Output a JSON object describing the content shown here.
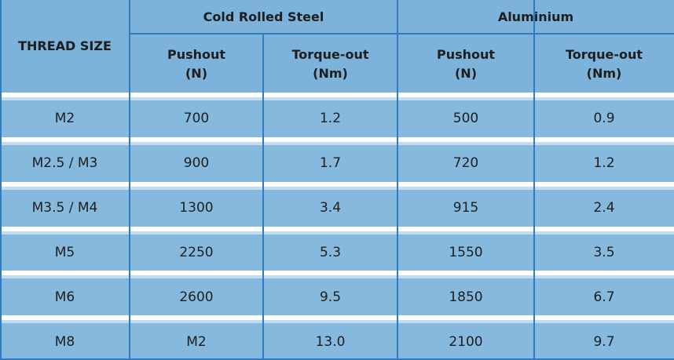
{
  "header": {
    "thread_size": "THREAD SIZE",
    "groups": [
      "Cold Rolled Steel",
      "Aluminium"
    ],
    "subheaders": [
      [
        "Pushout",
        "(N)"
      ],
      [
        "Torque-out",
        "(Nm)"
      ],
      [
        "Pushout",
        "(N)"
      ],
      [
        "Torque-out",
        "(Nm)"
      ]
    ]
  },
  "table": {
    "rows": [
      [
        "M2",
        "700",
        "1.2",
        "500",
        "0.9"
      ],
      [
        "M2.5 / M3",
        "900",
        "1.7",
        "720",
        "1.2"
      ],
      [
        "M3.5 / M4",
        "1300",
        "3.4",
        "915",
        "2.4"
      ],
      [
        "M5",
        "2250",
        "5.3",
        "1550",
        "3.5"
      ],
      [
        "M6",
        "2600",
        "9.5",
        "1850",
        "6.7"
      ],
      [
        "M8",
        "M2",
        "13.0",
        "2100",
        "9.7"
      ]
    ]
  }
}
